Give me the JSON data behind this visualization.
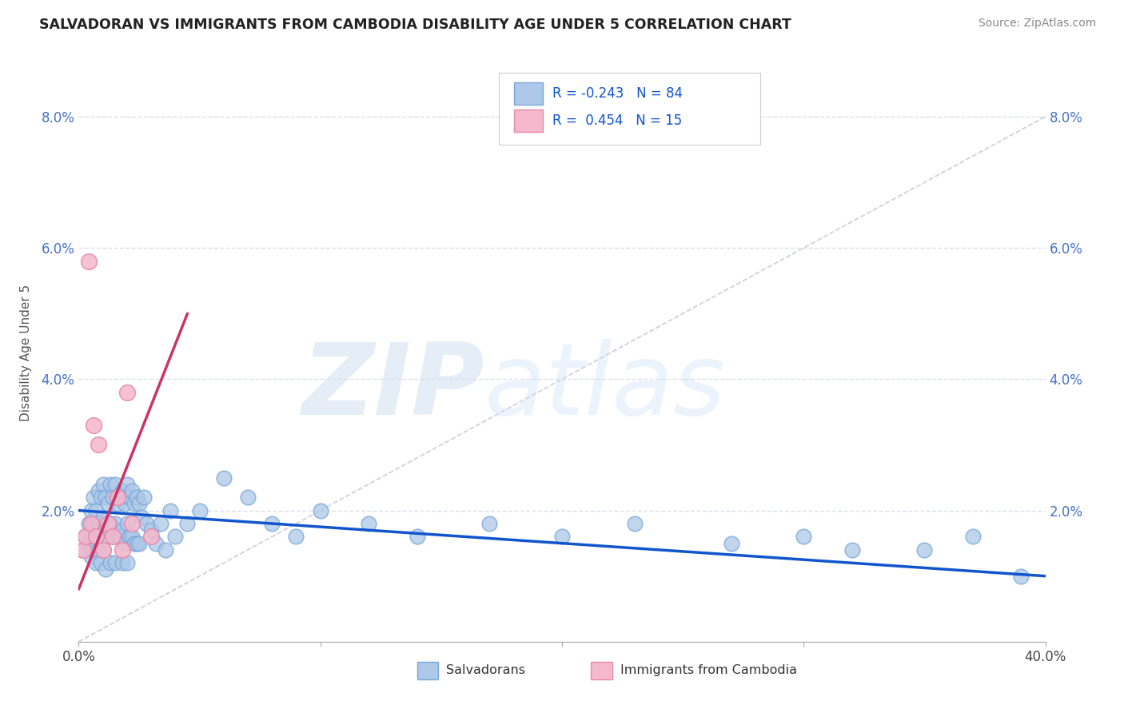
{
  "title": "SALVADORAN VS IMMIGRANTS FROM CAMBODIA DISABILITY AGE UNDER 5 CORRELATION CHART",
  "source": "Source: ZipAtlas.com",
  "ylabel": "Disability Age Under 5",
  "xlim": [
    0.0,
    0.4
  ],
  "ylim": [
    0.0,
    0.088
  ],
  "xticks": [
    0.0,
    0.1,
    0.2,
    0.3,
    0.4
  ],
  "xtick_labels": [
    "0.0%",
    "",
    "",
    "",
    "40.0%"
  ],
  "yticks": [
    0.0,
    0.02,
    0.04,
    0.06,
    0.08
  ],
  "ytick_labels_left": [
    "",
    "2.0%",
    "4.0%",
    "6.0%",
    "8.0%"
  ],
  "ytick_labels_right": [
    "",
    "2.0%",
    "4.0%",
    "6.0%",
    "8.0%"
  ],
  "legend_text1": "R = -0.243   N = 84",
  "legend_text2": "R =  0.454   N = 15",
  "blue_color": "#adc8e8",
  "blue_edge": "#7aa8d8",
  "pink_color": "#f5b8cc",
  "pink_edge": "#e888aa",
  "blue_line_color": "#1155cc",
  "pink_line_color": "#cc3366",
  "ref_line_color": "#c8c8d8",
  "background_color": "#ffffff",
  "watermark_zip": "ZIP",
  "watermark_atlas": "atlas",
  "blue_x": [
    0.002,
    0.003,
    0.004,
    0.004,
    0.005,
    0.005,
    0.005,
    0.006,
    0.006,
    0.006,
    0.007,
    0.007,
    0.007,
    0.008,
    0.008,
    0.008,
    0.009,
    0.009,
    0.009,
    0.01,
    0.01,
    0.01,
    0.011,
    0.011,
    0.011,
    0.012,
    0.012,
    0.013,
    0.013,
    0.013,
    0.014,
    0.014,
    0.015,
    0.015,
    0.015,
    0.016,
    0.016,
    0.017,
    0.017,
    0.018,
    0.018,
    0.018,
    0.019,
    0.019,
    0.02,
    0.02,
    0.02,
    0.021,
    0.021,
    0.022,
    0.022,
    0.023,
    0.023,
    0.024,
    0.024,
    0.025,
    0.025,
    0.026,
    0.027,
    0.028,
    0.03,
    0.032,
    0.034,
    0.036,
    0.038,
    0.04,
    0.045,
    0.05,
    0.06,
    0.07,
    0.08,
    0.09,
    0.1,
    0.12,
    0.14,
    0.17,
    0.2,
    0.23,
    0.27,
    0.3,
    0.32,
    0.35,
    0.37,
    0.39
  ],
  "blue_y": [
    0.014,
    0.016,
    0.018,
    0.015,
    0.02,
    0.016,
    0.013,
    0.022,
    0.018,
    0.014,
    0.02,
    0.016,
    0.012,
    0.023,
    0.018,
    0.014,
    0.022,
    0.017,
    0.012,
    0.024,
    0.019,
    0.014,
    0.022,
    0.017,
    0.011,
    0.021,
    0.016,
    0.024,
    0.018,
    0.012,
    0.022,
    0.016,
    0.024,
    0.018,
    0.012,
    0.021,
    0.016,
    0.022,
    0.016,
    0.023,
    0.017,
    0.012,
    0.021,
    0.015,
    0.024,
    0.018,
    0.012,
    0.022,
    0.016,
    0.023,
    0.016,
    0.021,
    0.015,
    0.022,
    0.015,
    0.021,
    0.015,
    0.019,
    0.022,
    0.018,
    0.017,
    0.015,
    0.018,
    0.014,
    0.02,
    0.016,
    0.018,
    0.02,
    0.025,
    0.022,
    0.018,
    0.016,
    0.02,
    0.018,
    0.016,
    0.018,
    0.016,
    0.018,
    0.015,
    0.016,
    0.014,
    0.014,
    0.016,
    0.01
  ],
  "pink_x": [
    0.002,
    0.003,
    0.004,
    0.005,
    0.006,
    0.007,
    0.008,
    0.01,
    0.012,
    0.014,
    0.016,
    0.018,
    0.02,
    0.022,
    0.03
  ],
  "pink_y": [
    0.014,
    0.016,
    0.058,
    0.018,
    0.033,
    0.016,
    0.03,
    0.014,
    0.018,
    0.016,
    0.022,
    0.014,
    0.038,
    0.018,
    0.016
  ],
  "blue_line_x0": 0.0,
  "blue_line_x1": 0.4,
  "blue_line_y0": 0.02,
  "blue_line_y1": 0.01,
  "pink_line_x0": 0.0,
  "pink_line_x1": 0.045,
  "pink_line_y0": 0.008,
  "pink_line_y1": 0.05
}
